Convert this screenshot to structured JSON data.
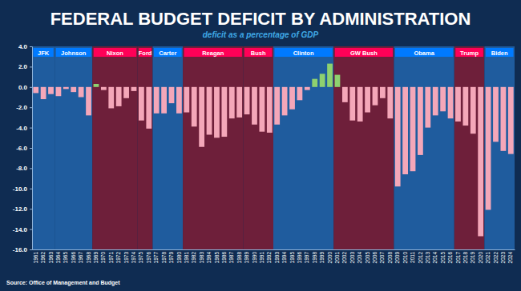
{
  "chart_data": {
    "type": "bar",
    "title": "FEDERAL BUDGET DEFICIT BY ADMINISTRATION",
    "subtitle": "deficit as a percentage of GDP",
    "source": "Source: Office of Management and Budget",
    "categories": [
      "1961",
      "1962",
      "1963",
      "1964",
      "1965",
      "1966",
      "1967",
      "1968",
      "1969",
      "1970",
      "1971",
      "1972",
      "1973",
      "1974",
      "1975",
      "1976",
      "1977",
      "1978",
      "1979",
      "1980",
      "1981",
      "1982",
      "1983",
      "1984",
      "1985",
      "1986",
      "1987",
      "1988",
      "1989",
      "1990",
      "1991",
      "1992",
      "1993",
      "1994",
      "1995",
      "1996",
      "1997",
      "1998",
      "1999",
      "2000",
      "2001",
      "2002",
      "2003",
      "2004",
      "2005",
      "2006",
      "2007",
      "2008",
      "2009",
      "2010",
      "2011",
      "2012",
      "2013",
      "2014",
      "2015",
      "2016",
      "2017",
      "2018",
      "2019",
      "2020",
      "2021",
      "2022",
      "2023",
      "2024"
    ],
    "values": [
      -0.6,
      -1.2,
      -0.7,
      -0.9,
      -0.2,
      -0.5,
      -1.0,
      -2.8,
      0.3,
      -0.3,
      -2.1,
      -1.9,
      -1.1,
      -0.4,
      -3.3,
      -4.1,
      -2.6,
      -2.6,
      -1.6,
      -2.6,
      -2.5,
      -3.9,
      -5.9,
      -4.7,
      -5.0,
      -4.9,
      -3.1,
      -3.0,
      -2.7,
      -3.7,
      -4.4,
      -4.5,
      -3.7,
      -2.8,
      -2.2,
      -1.3,
      -0.3,
      0.8,
      1.3,
      2.3,
      1.2,
      -1.5,
      -3.3,
      -3.4,
      -2.5,
      -1.8,
      -1.1,
      -3.1,
      -9.8,
      -8.6,
      -8.3,
      -6.7,
      -4.0,
      -2.8,
      -2.4,
      -3.1,
      -3.4,
      -3.8,
      -4.6,
      -14.7,
      -12.1,
      -5.4,
      -6.3,
      -6.6
    ],
    "colors": [
      "#f4a7b9",
      "#f4a7b9",
      "#f4a7b9",
      "#f4a7b9",
      "#f4a7b9",
      "#f4a7b9",
      "#f4a7b9",
      "#f4a7b9",
      "#8ed16f",
      "#f4a7b9",
      "#f4a7b9",
      "#f4a7b9",
      "#f4a7b9",
      "#f4a7b9",
      "#f4a7b9",
      "#f4a7b9",
      "#f4a7b9",
      "#f4a7b9",
      "#f4a7b9",
      "#f4a7b9",
      "#f4a7b9",
      "#f4a7b9",
      "#f4a7b9",
      "#f4a7b9",
      "#f4a7b9",
      "#f4a7b9",
      "#f4a7b9",
      "#f4a7b9",
      "#f4a7b9",
      "#f4a7b9",
      "#f4a7b9",
      "#f4a7b9",
      "#f4a7b9",
      "#f4a7b9",
      "#f4a7b9",
      "#f4a7b9",
      "#f4a7b9",
      "#8ed16f",
      "#8ed16f",
      "#8ed16f",
      "#8ed16f",
      "#f4a7b9",
      "#f4a7b9",
      "#f4a7b9",
      "#f4a7b9",
      "#f4a7b9",
      "#f4a7b9",
      "#f4a7b9",
      "#f4a7b9",
      "#f4a7b9",
      "#f4a7b9",
      "#f4a7b9",
      "#f4a7b9",
      "#f4a7b9",
      "#f4a7b9",
      "#f4a7b9",
      "#f4a7b9",
      "#f4a7b9",
      "#f4a7b9",
      "#f4a7b9",
      "#f4a7b9",
      "#f4a7b9",
      "#f4a7b9",
      "#f4a7b9"
    ],
    "administrations": [
      {
        "name": "JFK",
        "start": 1961,
        "end": 1963,
        "color": "#1f5c9e"
      },
      {
        "name": "Johnson",
        "start": 1964,
        "end": 1968,
        "color": "#1f5c9e"
      },
      {
        "name": "Nixon",
        "start": 1969,
        "end": 1974,
        "color": "#6e1f3a"
      },
      {
        "name": "Ford",
        "start": 1975,
        "end": 1976,
        "color": "#6e1f3a"
      },
      {
        "name": "Carter",
        "start": 1977,
        "end": 1980,
        "color": "#1f5c9e"
      },
      {
        "name": "Reagan",
        "start": 1981,
        "end": 1988,
        "color": "#6e1f3a"
      },
      {
        "name": "Bush",
        "start": 1989,
        "end": 1992,
        "color": "#6e1f3a"
      },
      {
        "name": "Clinton",
        "start": 1993,
        "end": 2000,
        "color": "#1f5c9e"
      },
      {
        "name": "GW Bush",
        "start": 2001,
        "end": 2008,
        "color": "#6e1f3a"
      },
      {
        "name": "Obama",
        "start": 2009,
        "end": 2016,
        "color": "#1f5c9e"
      },
      {
        "name": "Trump",
        "start": 2017,
        "end": 2020,
        "color": "#6e1f3a"
      },
      {
        "name": "Biden",
        "start": 2021,
        "end": 2024,
        "color": "#1f5c9e"
      }
    ],
    "ylim": [
      -16,
      4
    ],
    "yticks": [
      {
        "value": -16,
        "label": "-16.0"
      },
      {
        "value": -14,
        "label": "-14.0"
      },
      {
        "value": -12,
        "label": "-12.0"
      },
      {
        "value": -10,
        "label": "-10.0"
      },
      {
        "value": -8,
        "label": "-8.0"
      },
      {
        "value": -6,
        "label": "-6.0"
      },
      {
        "value": -4,
        "label": "-4.0"
      },
      {
        "value": -2,
        "label": "-2.0"
      },
      {
        "value": 0,
        "label": "0.0"
      },
      {
        "value": 2,
        "label": "2.0"
      },
      {
        "value": 4,
        "label": "4.0"
      }
    ],
    "grid": false
  }
}
